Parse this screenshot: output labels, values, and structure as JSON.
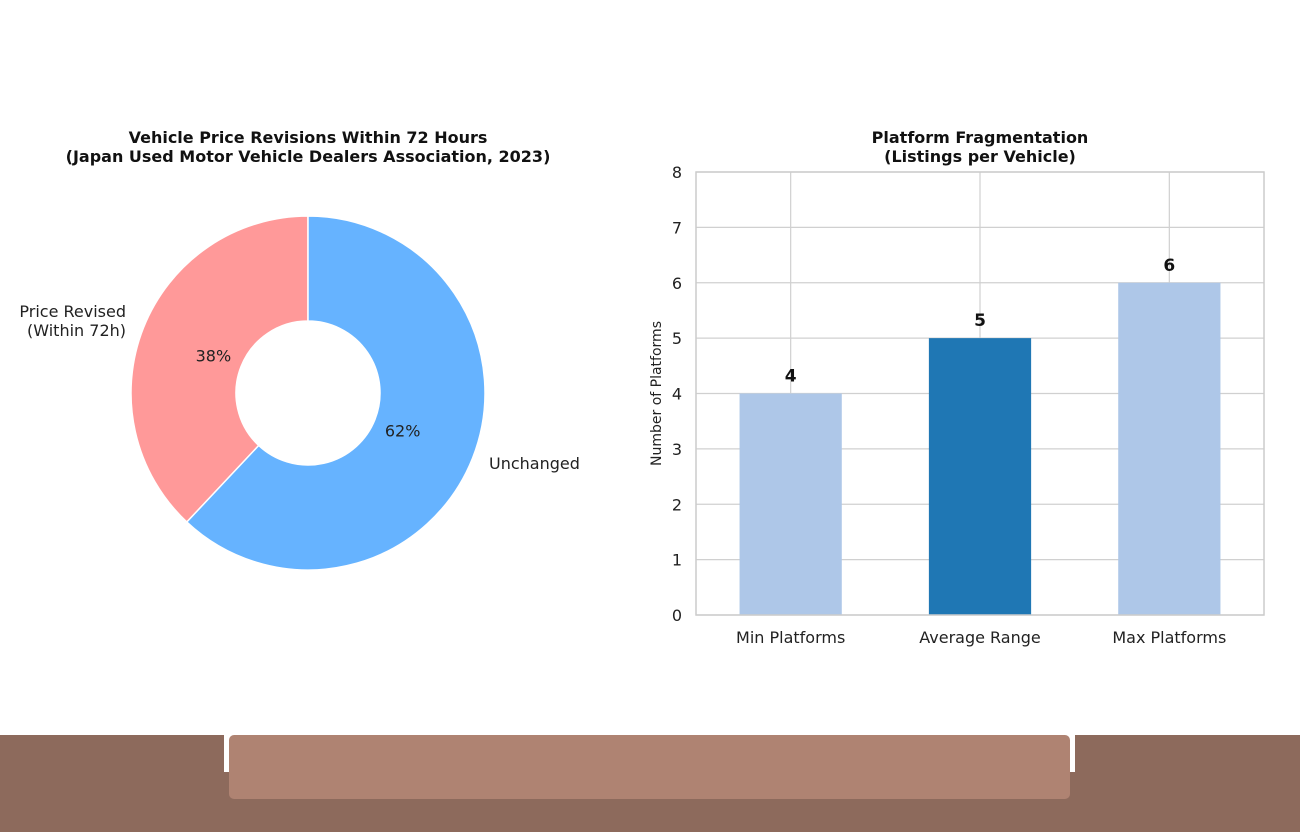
{
  "colors": {
    "revised": "#ff9999",
    "unchanged": "#66b3ff",
    "bar_light": "#aec7e8",
    "bar_dark": "#1f77b4",
    "grid": "#d0d0d0",
    "footer_dark": "#8d6a5c",
    "footer_light": "#af8372"
  },
  "chart_data": [
    {
      "type": "pie",
      "donut": true,
      "title_line1": "Vehicle Price Revisions Within 72 Hours",
      "title_line2": "(Japan Used Motor Vehicle Dealers Association, 2023)",
      "slices": [
        {
          "label_line1": "Price Revised",
          "label_line2": "(Within 72h)",
          "value": 38,
          "pct_label": "38%",
          "color": "#ff9999"
        },
        {
          "label_line1": "Unchanged",
          "label_line2": "",
          "value": 62,
          "pct_label": "62%",
          "color": "#66b3ff"
        }
      ]
    },
    {
      "type": "bar",
      "title_line1": "Platform Fragmentation",
      "title_line2": "(Listings per Vehicle)",
      "ylabel": "Number of Platforms",
      "xlabel": "",
      "ylim": [
        0,
        8
      ],
      "yticks": [
        "0",
        "1",
        "2",
        "3",
        "4",
        "5",
        "6",
        "7",
        "8"
      ],
      "grid": true,
      "categories": [
        "Min Platforms",
        "Average Range",
        "Max Platforms"
      ],
      "values": [
        4,
        5,
        6
      ],
      "value_labels": [
        "4",
        "5",
        "6"
      ],
      "bar_colors": [
        "#aec7e8",
        "#1f77b4",
        "#aec7e8"
      ]
    }
  ]
}
